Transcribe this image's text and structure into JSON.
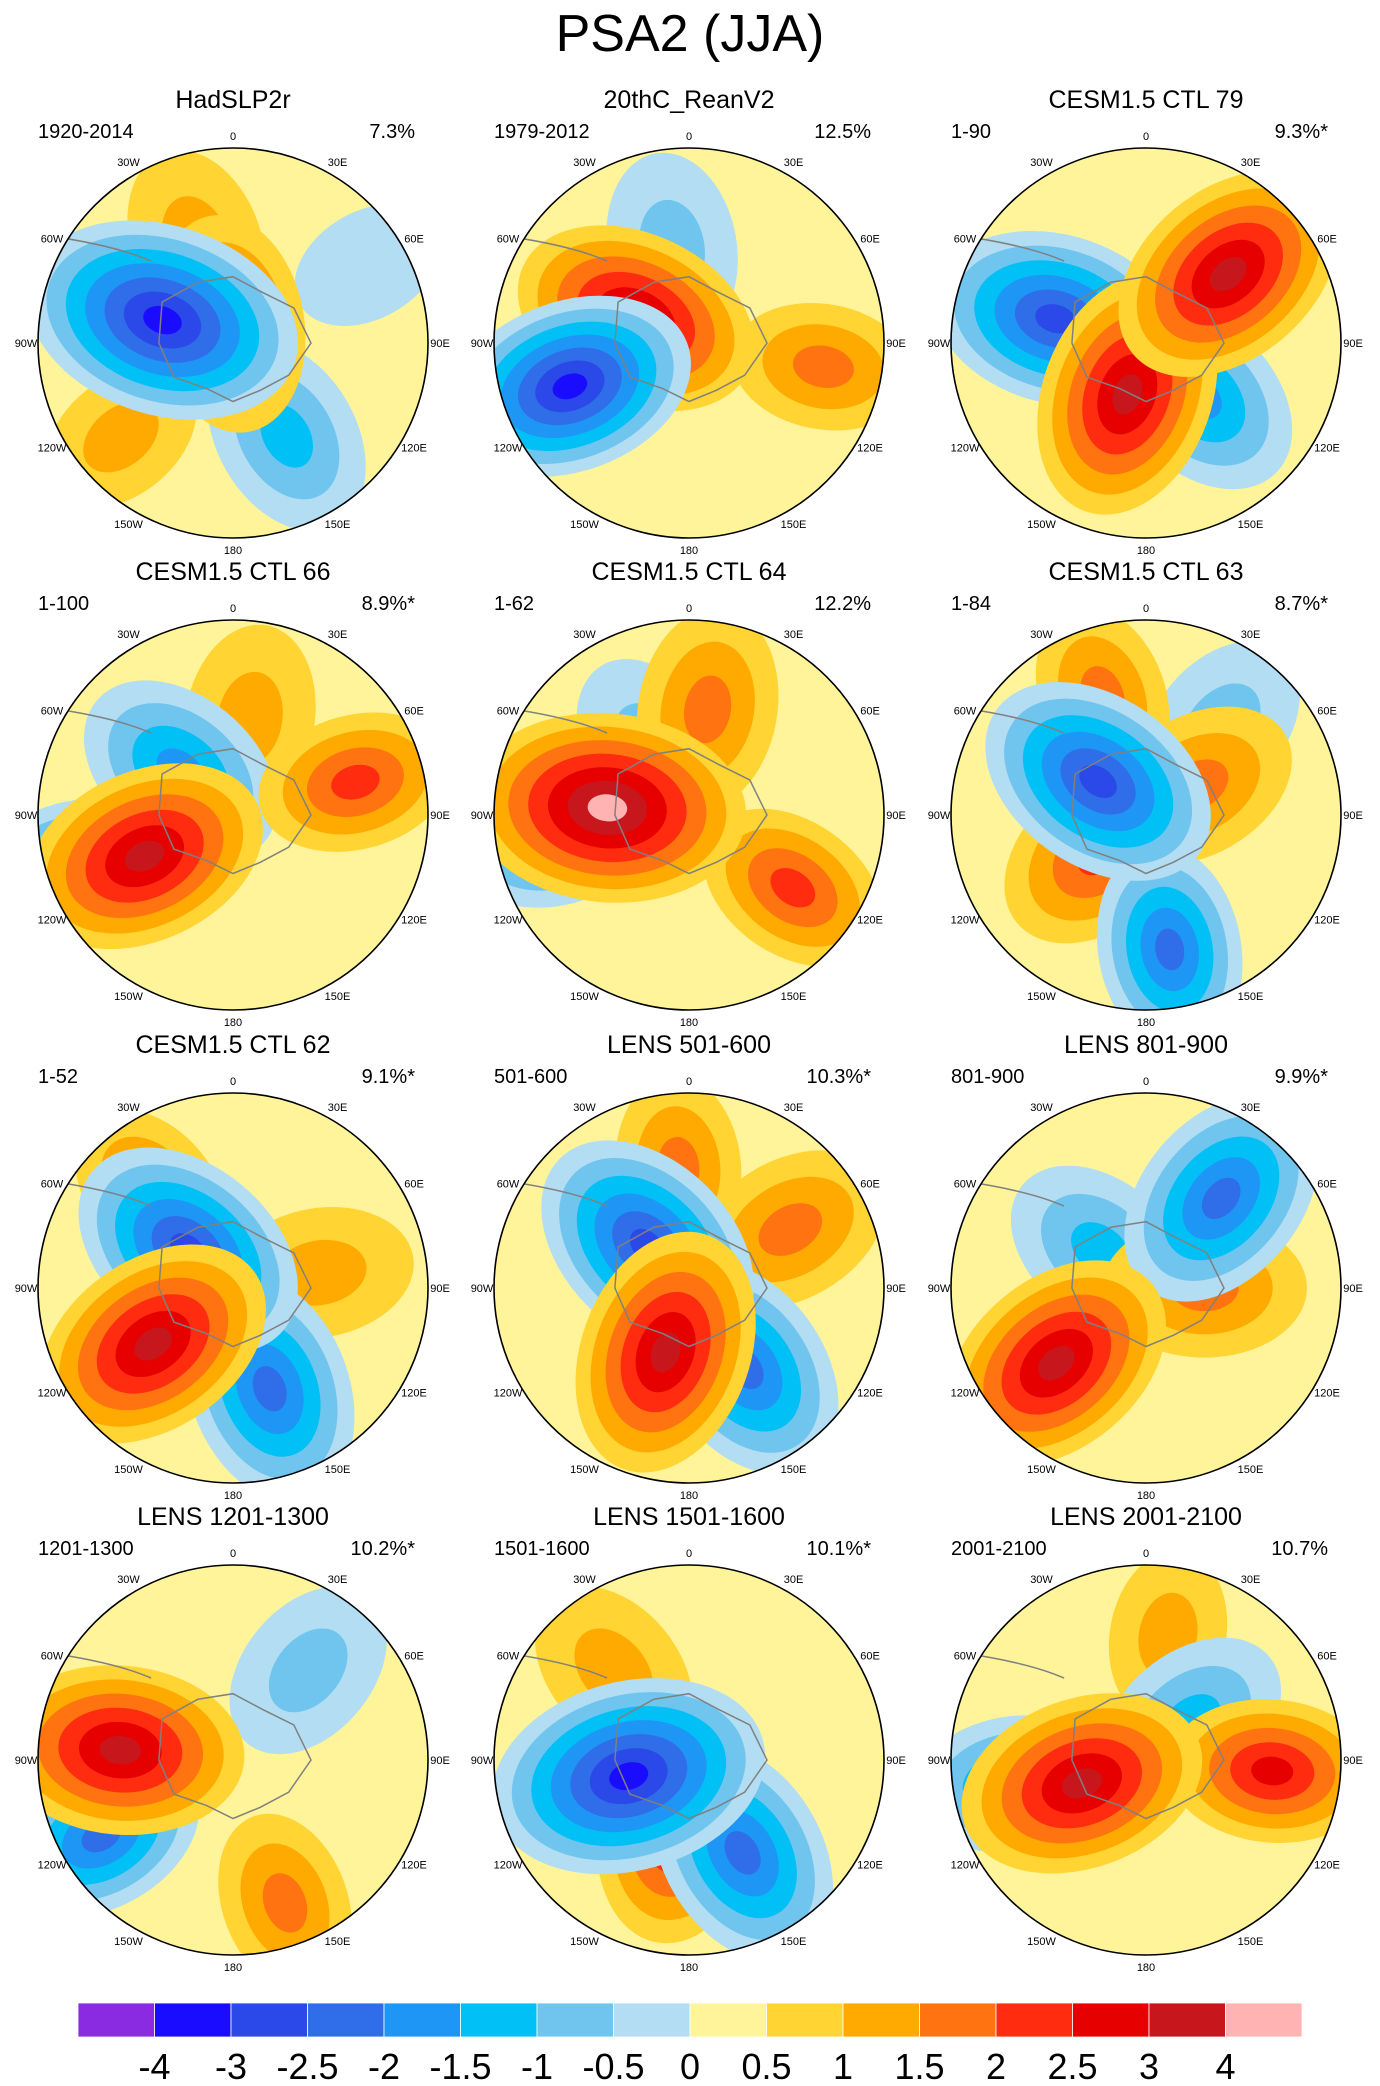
{
  "title": "PSA2 (JJA)",
  "lon_labels": [
    "0",
    "30E",
    "60E",
    "90E",
    "120E",
    "150E",
    "180",
    "150W",
    "120W",
    "90W",
    "60W",
    "30W"
  ],
  "chart_data": {
    "type": "heatmap",
    "projection": "south-polar stereographic",
    "panels": [
      {
        "title": "HadSLP2r",
        "period": "1920-2014",
        "variance": "7.3%",
        "anomalies": [
          {
            "lon": -72,
            "r": 0.38,
            "v": -4
          },
          {
            "lon": -130,
            "r": 0.75,
            "v": 1
          },
          {
            "lon": -20,
            "r": 0.55,
            "v": 1
          },
          {
            "lon": -10,
            "r": 0.1,
            "v": 2
          },
          {
            "lon": 150,
            "r": 0.55,
            "v": -1.5
          },
          {
            "lon": 60,
            "r": 0.8,
            "v": -0.5
          }
        ]
      },
      {
        "title": "20thC_ReanV2",
        "period": "1979-2012",
        "variance": "12.5%",
        "anomalies": [
          {
            "lon": -110,
            "r": 0.65,
            "v": -4
          },
          {
            "lon": -65,
            "r": 0.3,
            "v": 3
          },
          {
            "lon": -10,
            "r": 0.5,
            "v": -1
          },
          {
            "lon": 100,
            "r": 0.7,
            "v": 1.5
          }
        ]
      },
      {
        "title": "CESM1.5 CTL 79",
        "period": "1-90",
        "variance": "9.3%*",
        "anomalies": [
          {
            "lon": -75,
            "r": 0.48,
            "v": -3
          },
          {
            "lon": -160,
            "r": 0.28,
            "v": 3
          },
          {
            "lon": 50,
            "r": 0.55,
            "v": 3
          },
          {
            "lon": 135,
            "r": 0.38,
            "v": -2
          }
        ]
      },
      {
        "title": "CESM1.5 CTL 66",
        "period": "1-100",
        "variance": "8.9%*",
        "anomalies": [
          {
            "lon": -115,
            "r": 0.5,
            "v": 3
          },
          {
            "lon": -110,
            "r": 0.9,
            "v": -2.5
          },
          {
            "lon": -50,
            "r": 0.35,
            "v": -2
          },
          {
            "lon": 75,
            "r": 0.65,
            "v": 2
          },
          {
            "lon": 10,
            "r": 0.5,
            "v": 1
          }
        ]
      },
      {
        "title": "CESM1.5 CTL 64",
        "period": "1-62",
        "variance": "12.2%",
        "anomalies": [
          {
            "lon": -85,
            "r": 0.42,
            "v": 4
          },
          {
            "lon": -100,
            "r": 0.72,
            "v": -2
          },
          {
            "lon": 10,
            "r": 0.55,
            "v": 1.5
          },
          {
            "lon": 125,
            "r": 0.65,
            "v": 2
          },
          {
            "lon": -30,
            "r": 0.4,
            "v": -1
          }
        ]
      },
      {
        "title": "CESM1.5 CTL 63",
        "period": "1-84",
        "variance": "8.7%*",
        "anomalies": [
          {
            "lon": -55,
            "r": 0.3,
            "v": -3
          },
          {
            "lon": -130,
            "r": 0.3,
            "v": 2
          },
          {
            "lon": -20,
            "r": 0.65,
            "v": 1.5
          },
          {
            "lon": 170,
            "r": 0.7,
            "v": -2.5
          },
          {
            "lon": 60,
            "r": 0.3,
            "v": 1.5
          },
          {
            "lon": 40,
            "r": 0.6,
            "v": -1
          }
        ]
      },
      {
        "title": "CESM1.5 CTL 62",
        "period": "1-52",
        "variance": "9.1%*",
        "anomalies": [
          {
            "lon": -50,
            "r": 0.3,
            "v": -3
          },
          {
            "lon": -125,
            "r": 0.5,
            "v": 3
          },
          {
            "lon": 160,
            "r": 0.55,
            "v": -2.5
          },
          {
            "lon": -40,
            "r": 0.65,
            "v": 1.5
          },
          {
            "lon": 80,
            "r": 0.45,
            "v": 1
          }
        ]
      },
      {
        "title": "LENS 501-600",
        "period": "501-600",
        "variance": "10.3%*",
        "anomalies": [
          {
            "lon": -45,
            "r": 0.3,
            "v": -3
          },
          {
            "lon": -160,
            "r": 0.35,
            "v": 3
          },
          {
            "lon": 145,
            "r": 0.5,
            "v": -2.5
          },
          {
            "lon": -5,
            "r": 0.62,
            "v": 1.5
          },
          {
            "lon": 60,
            "r": 0.6,
            "v": 1.5
          }
        ]
      },
      {
        "title": "LENS 801-900",
        "period": "801-900",
        "variance": "9.9%*",
        "anomalies": [
          {
            "lon": -130,
            "r": 0.6,
            "v": 3
          },
          {
            "lon": 40,
            "r": 0.6,
            "v": -2.5
          },
          {
            "lon": -50,
            "r": 0.3,
            "v": -1.5
          },
          {
            "lon": 90,
            "r": 0.3,
            "v": 1.5
          }
        ]
      },
      {
        "title": "LENS 1201-1300",
        "period": "1201-1300",
        "variance": "10.2%*",
        "anomalies": [
          {
            "lon": -85,
            "r": 0.58,
            "v": 3
          },
          {
            "lon": -120,
            "r": 0.78,
            "v": -2.5
          },
          {
            "lon": 160,
            "r": 0.78,
            "v": 1.5
          },
          {
            "lon": 40,
            "r": 0.6,
            "v": -1
          }
        ]
      },
      {
        "title": "LENS 1501-1600",
        "period": "1501-1600",
        "variance": "10.1%*",
        "anomalies": [
          {
            "lon": -105,
            "r": 0.32,
            "v": -4
          },
          {
            "lon": -170,
            "r": 0.35,
            "v": 2.5
          },
          {
            "lon": 150,
            "r": 0.55,
            "v": -2.5
          },
          {
            "lon": -40,
            "r": 0.6,
            "v": 1
          }
        ]
      },
      {
        "title": "LENS 2001-2100",
        "period": "2001-2100",
        "variance": "10.7%",
        "anomalies": [
          {
            "lon": -110,
            "r": 0.35,
            "v": 3
          },
          {
            "lon": -100,
            "r": 0.7,
            "v": -2
          },
          {
            "lon": 95,
            "r": 0.65,
            "v": 2.5
          },
          {
            "lon": 50,
            "r": 0.3,
            "v": -1.5
          },
          {
            "lon": 10,
            "r": 0.65,
            "v": 1
          }
        ]
      }
    ],
    "colorbar": {
      "levels": [
        -4,
        -3,
        -2.5,
        -2,
        -1.5,
        -1,
        -0.5,
        0,
        0.5,
        1,
        1.5,
        2,
        2.5,
        3,
        4
      ],
      "level_labels": [
        "-4",
        "-3",
        "-2.5",
        "-2",
        "-1.5",
        "-1",
        "-0.5",
        "0",
        "0.5",
        "1",
        "1.5",
        "2",
        "2.5",
        "3",
        "4"
      ],
      "colors": [
        "#8a2be2",
        "#1a0dff",
        "#2b48e8",
        "#2f6ee8",
        "#1e96f5",
        "#00c0f5",
        "#6fc5ee",
        "#b3ddf2",
        "#fff49a",
        "#ffd433",
        "#ffaa00",
        "#ff7410",
        "#ff2c0f",
        "#e60000",
        "#c8161d",
        "#ffb3b3"
      ]
    }
  }
}
